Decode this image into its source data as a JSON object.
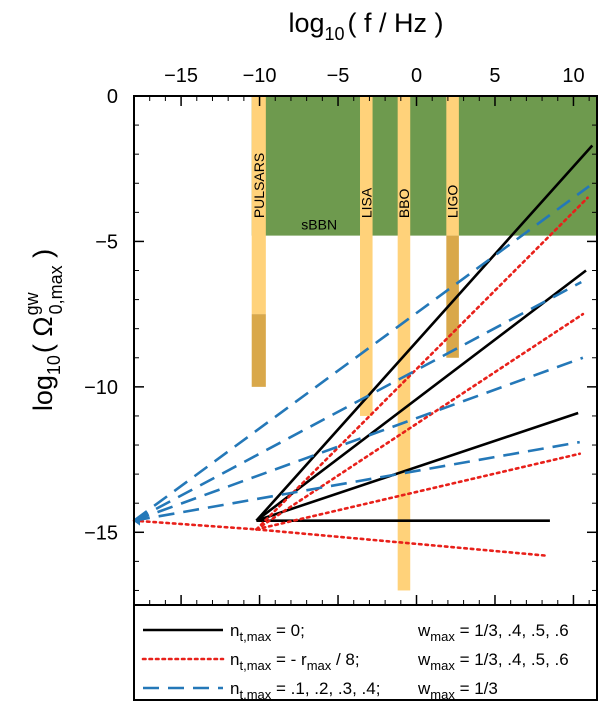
{
  "chart_data": {
    "type": "line",
    "x_axis": {
      "label_base": "log",
      "label_sub": "10",
      "label_rest": "( f / Hz )",
      "range": [
        -18,
        11.5
      ],
      "ticks": [
        -15,
        -10,
        -5,
        0,
        5,
        10
      ],
      "tick_labels": [
        "−15",
        "−10",
        "−5",
        "0",
        "5",
        "10"
      ]
    },
    "y_axis": {
      "label_base": "log",
      "label_sub": "10",
      "label_open": "( Ω",
      "label_sup": "gw",
      "label_sub2": "0,max",
      "label_close": " )",
      "range": [
        -17.5,
        0
      ],
      "ticks": [
        0,
        -5,
        -10,
        -15
      ],
      "tick_labels": [
        "0",
        "−5",
        "−10",
        "−15"
      ]
    },
    "regions": [
      {
        "name": "sBBN",
        "x": [
          -10.5,
          11.5
        ],
        "y": [
          -4.8,
          0
        ],
        "color": "#6e9a4e"
      }
    ],
    "bands": [
      {
        "name": "PULSARS",
        "x": [
          -10.5,
          -9.6
        ],
        "y_light": [
          -7.5,
          0
        ],
        "y_dark": [
          -10,
          -7.5
        ]
      },
      {
        "name": "LISA",
        "x": [
          -3.6,
          -2.8
        ],
        "y_light": [
          -11,
          0
        ],
        "y_dark": null
      },
      {
        "name": "BBO",
        "x": [
          -1.2,
          -0.4
        ],
        "y_light": [
          -17,
          0
        ],
        "y_dark": null
      },
      {
        "name": "LIGO",
        "x": [
          1.9,
          2.7
        ],
        "y_light": [
          -4.8,
          0
        ],
        "y_dark": [
          -9,
          -4.8
        ]
      }
    ],
    "series": [
      {
        "style": "solid",
        "color": "#000000",
        "x": [
          -10.2,
          11.2
        ],
        "y": [
          -14.6,
          -1.7
        ]
      },
      {
        "style": "solid",
        "color": "#000000",
        "x": [
          -10.2,
          10.8
        ],
        "y": [
          -14.6,
          -6.0
        ]
      },
      {
        "style": "solid",
        "color": "#000000",
        "x": [
          -10.2,
          10.3
        ],
        "y": [
          -14.6,
          -10.9
        ]
      },
      {
        "style": "solid",
        "color": "#000000",
        "x": [
          -10.2,
          8.5
        ],
        "y": [
          -14.6,
          -14.6
        ]
      },
      {
        "style": "dotted",
        "color": "#e8201a",
        "x": [
          -10.2,
          10.9
        ],
        "y": [
          -14.9,
          -3.5
        ]
      },
      {
        "style": "dotted",
        "color": "#e8201a",
        "x": [
          -10.2,
          10.6
        ],
        "y": [
          -14.9,
          -7.5
        ]
      },
      {
        "style": "dotted",
        "color": "#e8201a",
        "x": [
          -10.2,
          10.4
        ],
        "y": [
          -14.9,
          -12.3
        ]
      },
      {
        "style": "dotted",
        "color": "#e8201a",
        "x": [
          -18,
          -10.2,
          8.2
        ],
        "y": [
          -14.6,
          -14.9,
          -15.8
        ]
      },
      {
        "style": "dashed",
        "color": "#2478b8",
        "x": [
          -18,
          11.0
        ],
        "y": [
          -14.6,
          -3.1
        ]
      },
      {
        "style": "dashed",
        "color": "#2478b8",
        "x": [
          -18,
          10.5
        ],
        "y": [
          -14.6,
          -6.4
        ]
      },
      {
        "style": "dashed",
        "color": "#2478b8",
        "x": [
          -18,
          10.6
        ],
        "y": [
          -14.6,
          -9.0
        ]
      },
      {
        "style": "dashed",
        "color": "#2478b8",
        "x": [
          -18,
          10.4
        ],
        "y": [
          -14.6,
          -11.9
        ]
      }
    ],
    "grid": false
  },
  "legend": [
    {
      "style": "solid",
      "color": "#000000",
      "n_main": "n",
      "n_sub": "t,max",
      "n_rest": " = 0;",
      "w_main": "w",
      "w_sub": "max",
      "w_rest": " = 1/3, .4, .5, .6"
    },
    {
      "style": "dotted",
      "color": "#e8201a",
      "n_main": "n",
      "n_sub": "t,max",
      "n_rest": " = - r",
      "n_sub2": "max",
      "n_rest2": " / 8;",
      "w_main": "w",
      "w_sub": "max",
      "w_rest": " = 1/3, .4, .5, .6"
    },
    {
      "style": "dashed",
      "color": "#2478b8",
      "n_main": "n",
      "n_sub": "t,max",
      "n_rest": " = .1, .2, .3, .4;",
      "w_main": "w",
      "w_sub": "max",
      "w_rest": " = 1/3"
    }
  ],
  "colors": {
    "band_light": "#ffd27a",
    "band_dark": "#d9a84a",
    "sbbn": "#6e9a4e"
  }
}
